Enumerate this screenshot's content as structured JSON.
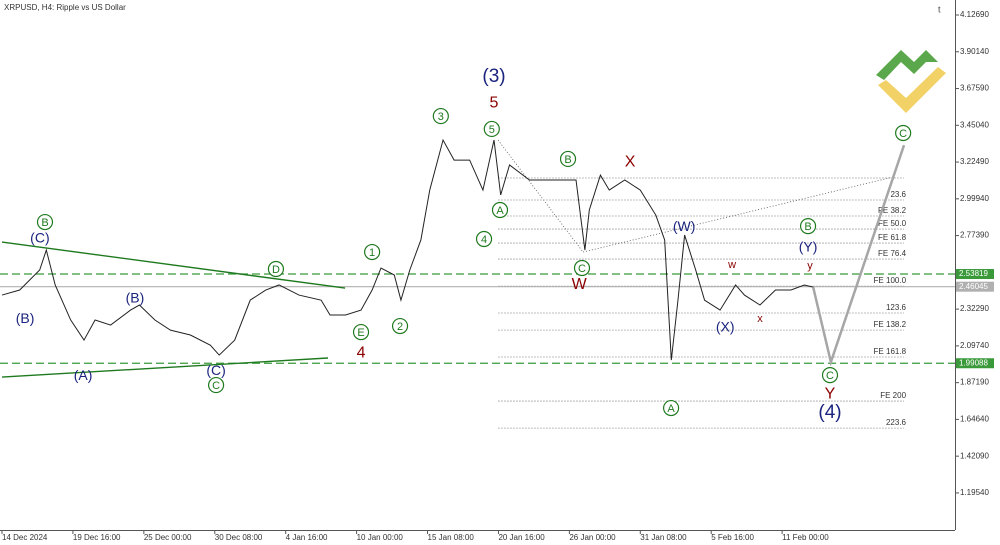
{
  "chart_data": {
    "type": "line",
    "title": "XRPUSD, H4:  Ripple vs US Dollar",
    "xlim": [
      0,
      430
    ],
    "ylim": [
      0.968,
      4.219
    ],
    "xticks": [
      {
        "value": 0,
        "label": "14 Dec 2024"
      },
      {
        "value": 32,
        "label": "19 Dec 16:00"
      },
      {
        "value": 64,
        "label": "25 Dec 00:00"
      },
      {
        "value": 96,
        "label": "30 Dec 08:00"
      },
      {
        "value": 128,
        "label": "4 Jan 16:00"
      },
      {
        "value": 160,
        "label": "10 Jan 00:00"
      },
      {
        "value": 192,
        "label": "15 Jan 08:00"
      },
      {
        "value": 224,
        "label": "20 Jan 16:00"
      },
      {
        "value": 256,
        "label": "26 Jan 00:00"
      },
      {
        "value": 288,
        "label": "31 Jan 08:00"
      },
      {
        "value": 320,
        "label": "5 Feb 16:00"
      },
      {
        "value": 352,
        "label": "11 Feb 00:00"
      }
    ],
    "yticks": [
      {
        "value": 4.1269,
        "label": "4.12690"
      },
      {
        "value": 3.9014,
        "label": "3.90140"
      },
      {
        "value": 3.6759,
        "label": "3.67590"
      },
      {
        "value": 3.4504,
        "label": "3.45040"
      },
      {
        "value": 3.2249,
        "label": "3.22490"
      },
      {
        "value": 2.9994,
        "label": "2.99940"
      },
      {
        "value": 2.7739,
        "label": "2.77390"
      },
      {
        "value": 2.3229,
        "label": "2.32290"
      },
      {
        "value": 2.0974,
        "label": "2.09740"
      },
      {
        "value": 1.8719,
        "label": "1.87190"
      },
      {
        "value": 1.6464,
        "label": "1.64640"
      },
      {
        "value": 1.4209,
        "label": "1.42090"
      },
      {
        "value": 1.1954,
        "label": "1.19540"
      }
    ],
    "series": [
      {
        "name": "XRPUSD",
        "color": "#222222",
        "x": [
          0,
          8,
          17,
          20,
          24,
          31,
          37,
          42,
          49,
          58,
          62,
          69,
          76,
          85,
          94,
          98,
          105,
          112,
          119,
          125,
          134,
          144,
          148,
          155,
          162,
          167,
          171,
          177,
          180,
          184,
          189,
          193,
          199,
          204,
          211,
          217,
          222,
          225,
          229,
          238,
          247,
          259,
          263,
          265,
          270,
          274,
          281,
          288,
          295,
          299,
          302,
          305,
          308,
          313,
          317,
          324,
          331,
          335,
          342,
          349,
          356,
          362,
          366
        ],
        "values": [
          2.409,
          2.44,
          2.563,
          2.685,
          2.471,
          2.256,
          2.133,
          2.256,
          2.225,
          2.317,
          2.348,
          2.256,
          2.194,
          2.164,
          2.102,
          2.041,
          2.133,
          2.378,
          2.44,
          2.471,
          2.409,
          2.378,
          2.287,
          2.287,
          2.317,
          2.44,
          2.575,
          2.532,
          2.378,
          2.563,
          2.747,
          3.053,
          3.36,
          3.237,
          3.237,
          3.053,
          3.36,
          3.023,
          3.207,
          3.115,
          3.115,
          3.115,
          2.685,
          2.931,
          3.145,
          3.053,
          3.115,
          3.053,
          2.9,
          2.747,
          2.01,
          2.378,
          2.777,
          2.563,
          2.378,
          2.317,
          2.471,
          2.409,
          2.348,
          2.44,
          2.44,
          2.471,
          2.458
        ]
      },
      {
        "name": "projection",
        "color": "#a6a6a6",
        "x": [
          366,
          374,
          407
        ],
        "values": [
          2.458,
          1.998,
          3.329
        ]
      }
    ],
    "levels": [
      {
        "value": 2.53819,
        "label": "2.53819",
        "color": "#3a9a3a",
        "style": "dashed"
      },
      {
        "value": 2.46045,
        "label": "2.46045",
        "color": "#b0b0b0",
        "style": "solid"
      },
      {
        "value": 1.99088,
        "label": "1.99088",
        "color": "#3a9a3a",
        "style": "dashed"
      }
    ],
    "fib_range": [
      224,
      407
    ],
    "fib_levels": [
      {
        "value": 3.127,
        "label": null
      },
      {
        "value": 2.992,
        "label": "23.6"
      },
      {
        "value": 2.894,
        "label": "FE 38.2"
      },
      {
        "value": 2.814,
        "label": "FE 50.0"
      },
      {
        "value": 2.728,
        "label": "FE 61.8"
      },
      {
        "value": 2.63,
        "label": "FE 76.4"
      },
      {
        "value": 2.464,
        "label": "FE 100.0"
      },
      {
        "value": 2.299,
        "label": "123.6"
      },
      {
        "value": 2.194,
        "label": "FE 138.2"
      },
      {
        "value": 2.029,
        "label": "FE 161.8"
      },
      {
        "value": 1.759,
        "label": "FE 200"
      },
      {
        "value": 1.593,
        "label": "223.6"
      }
    ],
    "trendlines": [
      {
        "color": "#1f7a1f",
        "style": "solid",
        "x": [
          0,
          154.8
        ],
        "values": [
          2.734,
          2.452
        ]
      },
      {
        "color": "#1f7a1f",
        "style": "solid",
        "x": [
          0,
          147.1
        ],
        "values": [
          1.906,
          2.023
        ]
      },
      {
        "color": "#555555",
        "style": "dotted",
        "x": [
          223.8,
          262.2
        ],
        "values": [
          3.36,
          2.673
        ]
      },
      {
        "color": "#555555",
        "style": "dotted",
        "x": [
          262.2,
          402
        ],
        "values": [
          2.673,
          3.133
        ]
      }
    ],
    "wave_labels": [
      {
        "text": "B",
        "style": "circle",
        "x": 19.4,
        "y": 2.857
      },
      {
        "text": "D",
        "style": "circle",
        "x": 123.6,
        "y": 2.569
      },
      {
        "text": "1",
        "style": "circle",
        "x": 167,
        "y": 2.673
      },
      {
        "text": "2",
        "style": "circle",
        "x": 179.6,
        "y": 2.219
      },
      {
        "text": "3",
        "style": "circle",
        "x": 198,
        "y": 3.507
      },
      {
        "text": "4",
        "style": "circle",
        "x": 217.5,
        "y": 2.753
      },
      {
        "text": "5",
        "style": "circle",
        "x": 221,
        "y": 3.428
      },
      {
        "text": "A",
        "style": "circle",
        "x": 224.7,
        "y": 2.931
      },
      {
        "text": "B",
        "style": "circle",
        "x": 255.4,
        "y": 3.244
      },
      {
        "text": "C",
        "style": "circle",
        "x": 261.7,
        "y": 2.575
      },
      {
        "text": "E",
        "style": "circle",
        "x": 162,
        "y": 2.182
      },
      {
        "text": "C",
        "style": "circle",
        "x": 96.6,
        "y": 1.857
      },
      {
        "text": "B",
        "style": "circle",
        "x": 363.7,
        "y": 2.832
      },
      {
        "text": "A",
        "style": "circle",
        "x": 301.9,
        "y": 1.716
      },
      {
        "text": "C",
        "style": "circle",
        "x": 373.6,
        "y": 1.918
      },
      {
        "text": "C",
        "style": "circle",
        "x": 406.6,
        "y": 3.403
      },
      {
        "text": "(C)",
        "style": "blue",
        "x": 17.1,
        "y": 2.759
      },
      {
        "text": "(B)",
        "style": "blue",
        "x": 10.4,
        "y": 2.268
      },
      {
        "text": "(A)",
        "style": "blue",
        "x": 36.6,
        "y": 1.918
      },
      {
        "text": "(B)",
        "style": "blue",
        "x": 60,
        "y": 2.391
      },
      {
        "text": "(C)",
        "style": "blue",
        "x": 96.6,
        "y": 1.949
      },
      {
        "text": "(3)",
        "style": "blue-large",
        "x": 222,
        "y": 3.753
      },
      {
        "text": "(W)",
        "style": "blue",
        "x": 307.8,
        "y": 2.832
      },
      {
        "text": "(Y)",
        "style": "blue",
        "x": 363.7,
        "y": 2.704
      },
      {
        "text": "(X)",
        "style": "blue",
        "x": 326.3,
        "y": 2.213
      },
      {
        "text": "(4)",
        "style": "blue-large",
        "x": 373.6,
        "y": 1.691
      },
      {
        "text": "5",
        "style": "red",
        "x": 222,
        "y": 3.593
      },
      {
        "text": "4",
        "style": "red",
        "x": 162,
        "y": 2.059
      },
      {
        "text": "W",
        "style": "red",
        "x": 260.4,
        "y": 2.477
      },
      {
        "text": "X",
        "style": "red",
        "x": 283.4,
        "y": 3.231
      },
      {
        "text": "w",
        "style": "red-small",
        "x": 329.4,
        "y": 2.599
      },
      {
        "text": "x",
        "style": "red-small",
        "x": 342,
        "y": 2.268
      },
      {
        "text": "y",
        "style": "red-small",
        "x": 364.6,
        "y": 2.593
      },
      {
        "text": "Y",
        "style": "red",
        "x": 373.6,
        "y": 1.808
      }
    ]
  }
}
